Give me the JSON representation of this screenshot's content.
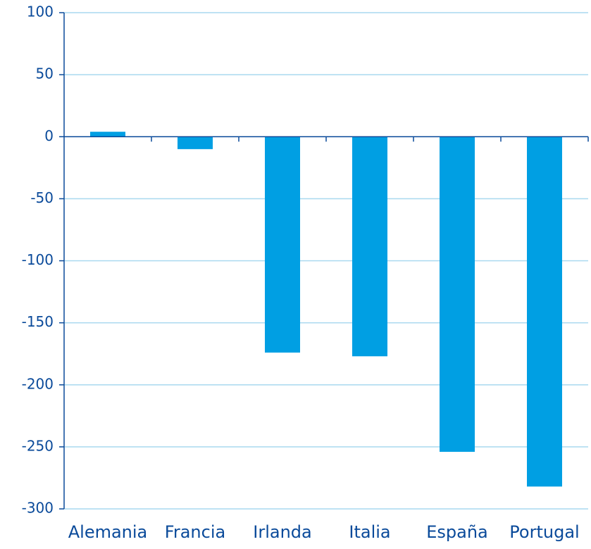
{
  "chart_data": {
    "type": "bar",
    "categories": [
      "Alemania",
      "Francia",
      "Irlanda",
      "Italia",
      "España",
      "Portugal"
    ],
    "values": [
      4,
      -10,
      -174,
      -177,
      -254,
      -282
    ],
    "color": "#009fe3",
    "ylim": [
      -300,
      100
    ],
    "yticks": [
      -300,
      -250,
      -200,
      -150,
      -100,
      -50,
      0,
      50,
      100
    ],
    "grid": true
  }
}
